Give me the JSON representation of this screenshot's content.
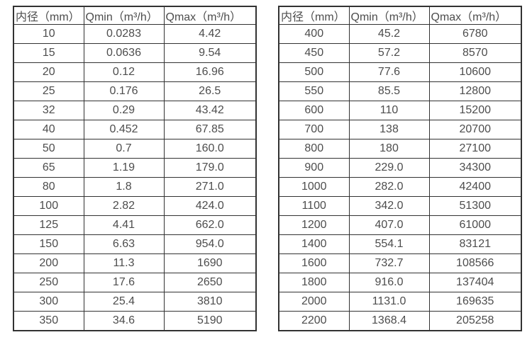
{
  "page": {
    "background_color": "#ffffff",
    "text_color": "#4d4d4d",
    "border_color": "#323232"
  },
  "tables": [
    {
      "name": "small-diameter-flow-table",
      "headers": [
        "内径（mm）",
        "Qmin（m³/h）",
        "Qmax（m³/h）"
      ],
      "rows": [
        [
          "10",
          "0.0283",
          "4.42"
        ],
        [
          "15",
          "0.0636",
          "9.54"
        ],
        [
          "20",
          "0.12",
          "16.96"
        ],
        [
          "25",
          "0.176",
          "26.5"
        ],
        [
          "32",
          "0.29",
          "43.42"
        ],
        [
          "40",
          "0.452",
          "67.85"
        ],
        [
          "50",
          "0.7",
          "160.0"
        ],
        [
          "65",
          "1.19",
          "179.0"
        ],
        [
          "80",
          "1.8",
          "271.0"
        ],
        [
          "100",
          "2.82",
          "424.0"
        ],
        [
          "125",
          "4.41",
          "662.0"
        ],
        [
          "150",
          "6.63",
          "954.0"
        ],
        [
          "200",
          "11.3",
          "1690"
        ],
        [
          "250",
          "17.6",
          "2650"
        ],
        [
          "300",
          "25.4",
          "3810"
        ],
        [
          "350",
          "34.6",
          "5190"
        ]
      ]
    },
    {
      "name": "large-diameter-flow-table",
      "headers": [
        "内径（mm）",
        "Qmin（m³/h）",
        "Qmax（m³/h）"
      ],
      "rows": [
        [
          "400",
          "45.2",
          "6780"
        ],
        [
          "450",
          "57.2",
          "8570"
        ],
        [
          "500",
          "77.6",
          "10600"
        ],
        [
          "550",
          "85.5",
          "12800"
        ],
        [
          "600",
          "110",
          "15200"
        ],
        [
          "700",
          "138",
          "20700"
        ],
        [
          "800",
          "180",
          "27100"
        ],
        [
          "900",
          "229.0",
          "34300"
        ],
        [
          "1000",
          "282.0",
          "42400"
        ],
        [
          "1100",
          "342.0",
          "51300"
        ],
        [
          "1200",
          "407.0",
          "61000"
        ],
        [
          "1400",
          "554.1",
          "83121"
        ],
        [
          "1600",
          "732.7",
          "108566"
        ],
        [
          "1800",
          "916.0",
          "137404"
        ],
        [
          "2000",
          "1131.0",
          "169635"
        ],
        [
          "2200",
          "1368.4",
          "205258"
        ]
      ]
    }
  ]
}
